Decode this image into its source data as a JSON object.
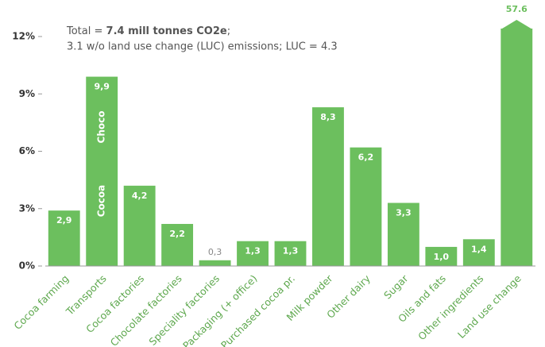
{
  "chart_data": {
    "type": "bar",
    "annotation": {
      "lead": "Total = ",
      "emphasis": "7.4 mill tonnes CO2e",
      "tail": ";",
      "line2": "3.1 w/o land use change (LUC) emissions; LUC = 4.3"
    },
    "bar_annotations": [
      "Choco",
      "Cocoa"
    ],
    "categories": [
      "Cocoa farming",
      "Transports",
      "Cocoa factories",
      "Chocolate factories",
      "Speciality factories",
      "Packaging (+ office)",
      "Purchased cocoa pr.",
      "Milk powder",
      "Other dairy",
      "Sugar",
      "Oils and fats",
      "Other ingredients",
      "Land use change"
    ],
    "values": [
      2.9,
      9.9,
      4.2,
      2.2,
      0.3,
      1.3,
      1.3,
      8.3,
      6.2,
      3.3,
      1.0,
      1.4,
      57.6
    ],
    "value_labels": [
      "2,9",
      "9,9",
      "4,2",
      "2,2",
      "0,3",
      "1,3",
      "1,3",
      "8,3",
      "6,2",
      "3,3",
      "1,0",
      "1,4",
      "57.6"
    ],
    "color": "#6cbf5e",
    "ylim": [
      0,
      12
    ],
    "yticks": [
      {
        "value": 0,
        "label": "0%"
      },
      {
        "value": 3,
        "label": "3%"
      },
      {
        "value": 6,
        "label": "6%"
      },
      {
        "value": 9,
        "label": "9%"
      },
      {
        "value": 12,
        "label": "12%"
      }
    ],
    "grid": false
  }
}
